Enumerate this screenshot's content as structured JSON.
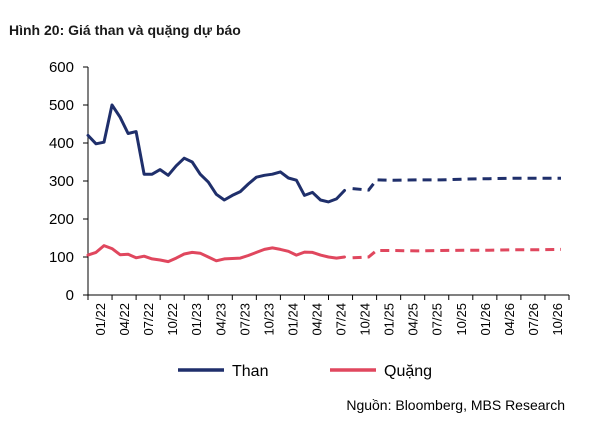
{
  "figure": {
    "title": "Hình 20: Giá than và quặng dự báo",
    "source": "Nguồn: Bloomberg, MBS Research"
  },
  "chart_data": {
    "type": "line",
    "title": "Hình 20: Giá than và quặng dự báo",
    "xlabel": "",
    "ylabel": "",
    "ylim": [
      0,
      600
    ],
    "yticks": [
      0,
      100,
      200,
      300,
      400,
      500,
      600
    ],
    "x_tick_labels": [
      "01/22",
      "04/22",
      "07/22",
      "10/22",
      "01/23",
      "04/23",
      "07/23",
      "10/23",
      "01/24",
      "04/24",
      "07/24",
      "10/24",
      "01/25",
      "04/25",
      "07/25",
      "10/25",
      "01/26",
      "04/26",
      "07/26",
      "10/26"
    ],
    "x_range": [
      "01/22",
      "12/26"
    ],
    "grid": false,
    "legend": "bottom",
    "series": [
      {
        "name": "Than",
        "color": "#1f2f6b",
        "actual": [
          [
            "01/22",
            420
          ],
          [
            "02/22",
            398
          ],
          [
            "03/22",
            402
          ],
          [
            "04/22",
            500
          ],
          [
            "05/22",
            468
          ],
          [
            "06/22",
            425
          ],
          [
            "07/22",
            430
          ],
          [
            "08/22",
            318
          ],
          [
            "09/22",
            318
          ],
          [
            "10/22",
            330
          ],
          [
            "11/22",
            315
          ],
          [
            "12/22",
            340
          ],
          [
            "01/23",
            360
          ],
          [
            "02/23",
            350
          ],
          [
            "03/23",
            318
          ],
          [
            "04/23",
            297
          ],
          [
            "05/23",
            265
          ],
          [
            "06/23",
            250
          ],
          [
            "07/23",
            262
          ],
          [
            "08/23",
            272
          ],
          [
            "09/23",
            292
          ],
          [
            "10/23",
            310
          ],
          [
            "11/23",
            315
          ],
          [
            "12/23",
            318
          ],
          [
            "01/24",
            324
          ],
          [
            "02/24",
            308
          ],
          [
            "03/24",
            302
          ],
          [
            "04/24",
            262
          ],
          [
            "05/24",
            270
          ],
          [
            "06/24",
            250
          ],
          [
            "07/24",
            245
          ],
          [
            "08/24",
            253
          ],
          [
            "09/24",
            275
          ]
        ],
        "forecast": [
          [
            "10/24",
            280
          ],
          [
            "12/24",
            276
          ],
          [
            "01/25",
            303
          ],
          [
            "03/25",
            302
          ],
          [
            "06/25",
            303
          ],
          [
            "09/25",
            303
          ],
          [
            "12/25",
            305
          ],
          [
            "03/26",
            306
          ],
          [
            "06/26",
            307
          ],
          [
            "09/26",
            307
          ],
          [
            "12/26",
            307
          ]
        ]
      },
      {
        "name": "Quặng",
        "color": "#e0475e",
        "actual": [
          [
            "01/22",
            105
          ],
          [
            "02/22",
            112
          ],
          [
            "03/22",
            130
          ],
          [
            "04/22",
            122
          ],
          [
            "05/22",
            106
          ],
          [
            "06/22",
            107
          ],
          [
            "07/22",
            98
          ],
          [
            "08/22",
            102
          ],
          [
            "09/22",
            95
          ],
          [
            "10/22",
            92
          ],
          [
            "11/22",
            88
          ],
          [
            "12/22",
            97
          ],
          [
            "01/23",
            108
          ],
          [
            "02/23",
            112
          ],
          [
            "03/23",
            110
          ],
          [
            "04/23",
            100
          ],
          [
            "05/23",
            90
          ],
          [
            "06/23",
            95
          ],
          [
            "07/23",
            96
          ],
          [
            "08/23",
            97
          ],
          [
            "09/23",
            104
          ],
          [
            "10/23",
            112
          ],
          [
            "11/23",
            120
          ],
          [
            "12/23",
            124
          ],
          [
            "01/24",
            120
          ],
          [
            "02/24",
            115
          ],
          [
            "03/24",
            105
          ],
          [
            "04/24",
            113
          ],
          [
            "05/24",
            112
          ],
          [
            "06/24",
            105
          ],
          [
            "07/24",
            100
          ],
          [
            "08/24",
            97
          ],
          [
            "09/24",
            100
          ]
        ],
        "forecast": [
          [
            "10/24",
            98
          ],
          [
            "12/24",
            100
          ],
          [
            "01/25",
            117
          ],
          [
            "03/25",
            117
          ],
          [
            "06/25",
            116
          ],
          [
            "09/25",
            117
          ],
          [
            "12/25",
            118
          ],
          [
            "03/26",
            118
          ],
          [
            "06/26",
            119
          ],
          [
            "09/26",
            119
          ],
          [
            "12/26",
            120
          ]
        ]
      }
    ]
  }
}
